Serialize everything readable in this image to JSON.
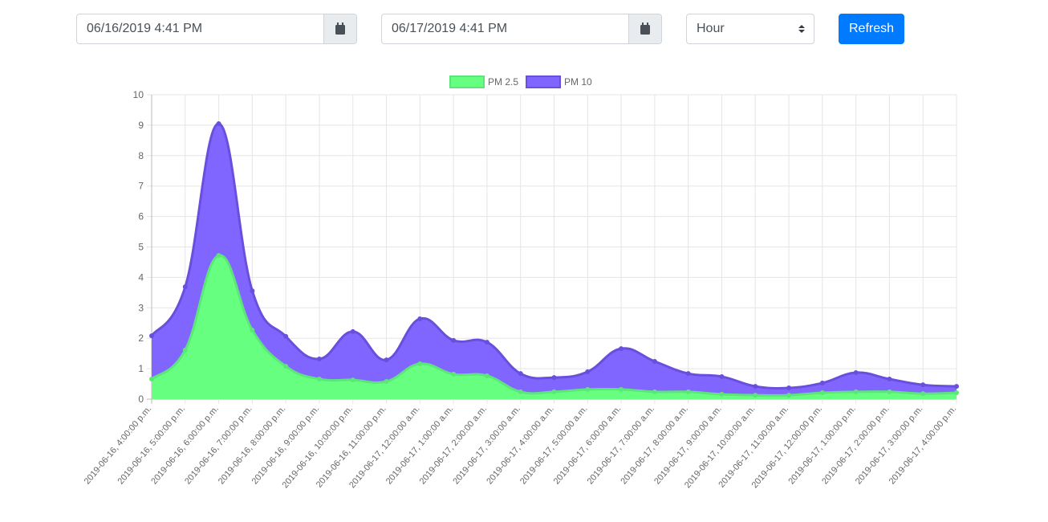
{
  "controls": {
    "start_date": "06/16/2019 4:41 PM",
    "end_date": "06/17/2019 4:41 PM",
    "interval": "Hour",
    "refresh": "Refresh"
  },
  "chart_data": {
    "type": "line",
    "area": true,
    "grid": true,
    "legend": "top",
    "categories": [
      "2019-06-16, 4:00:00 p.m.",
      "2019-06-16, 5:00:00 p.m.",
      "2019-06-16, 6:00:00 p.m.",
      "2019-06-16, 7:00:00 p.m.",
      "2019-06-16, 8:00:00 p.m.",
      "2019-06-16, 9:00:00 p.m.",
      "2019-06-16, 10:00:00 p.m.",
      "2019-06-16, 11:00:00 p.m.",
      "2019-06-17, 12:00:00 a.m.",
      "2019-06-17, 1:00:00 a.m.",
      "2019-06-17, 2:00:00 a.m.",
      "2019-06-17, 3:00:00 a.m.",
      "2019-06-17, 4:00:00 a.m.",
      "2019-06-17, 5:00:00 a.m.",
      "2019-06-17, 6:00:00 a.m.",
      "2019-06-17, 7:00:00 a.m.",
      "2019-06-17, 8:00:00 a.m.",
      "2019-06-17, 9:00:00 a.m.",
      "2019-06-17, 10:00:00 a.m.",
      "2019-06-17, 11:00:00 a.m.",
      "2019-06-17, 12:00:00 p.m.",
      "2019-06-17, 1:00:00 p.m.",
      "2019-06-17, 2:00:00 p.m.",
      "2019-06-17, 3:00:00 p.m.",
      "2019-06-17, 4:00:00 p.m."
    ],
    "series": [
      {
        "name": "PM 2.5",
        "color": "#66ff80",
        "stroke": "#5ce67a",
        "values": [
          0.66,
          1.61,
          4.72,
          2.27,
          1.08,
          0.66,
          0.63,
          0.58,
          1.16,
          0.82,
          0.77,
          0.24,
          0.24,
          0.32,
          0.32,
          0.24,
          0.24,
          0.16,
          0.13,
          0.13,
          0.21,
          0.24,
          0.24,
          0.18,
          0.21
        ]
      },
      {
        "name": "PM 10",
        "color": "#8066ff",
        "stroke": "#6a4fdd",
        "values": [
          2.08,
          3.69,
          9.05,
          3.56,
          2.06,
          1.32,
          2.22,
          1.29,
          2.64,
          1.93,
          1.87,
          0.84,
          0.71,
          0.9,
          1.66,
          1.24,
          0.84,
          0.74,
          0.42,
          0.37,
          0.53,
          0.87,
          0.66,
          0.47,
          0.42
        ]
      }
    ],
    "ylim": [
      0,
      10
    ],
    "yticks": [
      0,
      1,
      2,
      3,
      4,
      5,
      6,
      7,
      8,
      9,
      10
    ]
  }
}
